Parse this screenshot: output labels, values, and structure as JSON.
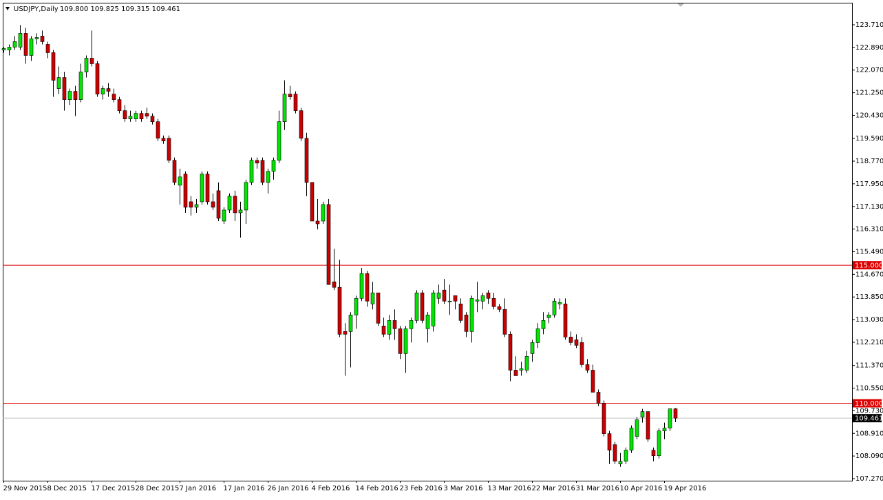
{
  "chart_data": {
    "type": "candlestick",
    "title": "USDJPY,Daily",
    "subtitle": "109.800 109.825 109.315 109.461",
    "candle_fields": [
      "open",
      "high",
      "low",
      "close"
    ],
    "up_color": "#00e600",
    "down_color": "#cc0000",
    "categories": [
      "29 Nov 2015",
      null,
      null,
      null,
      null,
      null,
      null,
      null,
      "8 Dec 2015",
      null,
      null,
      null,
      null,
      null,
      null,
      null,
      "17 Dec 2015",
      null,
      null,
      null,
      null,
      null,
      null,
      null,
      "28 Dec 2015",
      null,
      null,
      null,
      null,
      null,
      null,
      null,
      "7 Jan 2016",
      null,
      null,
      null,
      null,
      null,
      null,
      null,
      "17 Jan 2016",
      null,
      null,
      null,
      null,
      null,
      null,
      null,
      "26 Jan 2016",
      null,
      null,
      null,
      null,
      null,
      null,
      null,
      "4 Feb 2016",
      null,
      null,
      null,
      null,
      null,
      null,
      null,
      "14 Feb 2016",
      null,
      null,
      null,
      null,
      null,
      null,
      null,
      "23 Feb 2016",
      null,
      null,
      null,
      null,
      null,
      null,
      null,
      "3 Mar 2016",
      null,
      null,
      null,
      null,
      null,
      null,
      null,
      "13 Mar 2016",
      null,
      null,
      null,
      null,
      null,
      null,
      null,
      "22 Mar 2016",
      null,
      null,
      null,
      null,
      null,
      null,
      null,
      "31 Mar 2016",
      null,
      null,
      null,
      null,
      null,
      null,
      null,
      "10 Apr 2016",
      null,
      null,
      null,
      null,
      null,
      null,
      null,
      "19 Apr 2016",
      null,
      null
    ],
    "candles": [
      [
        122.8,
        122.9,
        122.7,
        122.85
      ],
      [
        122.8,
        123.0,
        122.6,
        122.9
      ],
      [
        122.9,
        123.3,
        122.8,
        123.1
      ],
      [
        122.9,
        123.7,
        122.8,
        123.4
      ],
      [
        123.4,
        123.6,
        122.3,
        122.6
      ],
      [
        122.6,
        123.3,
        122.4,
        123.2
      ],
      [
        123.2,
        123.4,
        123.0,
        123.25
      ],
      [
        123.3,
        123.5,
        123.0,
        123.1
      ],
      [
        123.0,
        123.1,
        122.5,
        122.7
      ],
      [
        122.7,
        122.8,
        121.1,
        121.7
      ],
      [
        121.4,
        122.2,
        121.2,
        121.8
      ],
      [
        121.8,
        122.0,
        120.6,
        121.0
      ],
      [
        121.0,
        121.4,
        120.8,
        121.3
      ],
      [
        121.3,
        121.5,
        120.4,
        121.0
      ],
      [
        121.0,
        122.3,
        120.9,
        122.0
      ],
      [
        122.0,
        122.6,
        121.8,
        122.5
      ],
      [
        122.5,
        123.5,
        122.2,
        122.3
      ],
      [
        122.3,
        122.4,
        121.1,
        121.2
      ],
      [
        121.2,
        121.5,
        121.0,
        121.4
      ],
      [
        121.4,
        121.6,
        121.1,
        121.3
      ],
      [
        121.2,
        121.4,
        120.9,
        121.0
      ],
      [
        121.0,
        121.1,
        120.5,
        120.6
      ],
      [
        120.6,
        120.8,
        120.2,
        120.3
      ],
      [
        120.3,
        120.6,
        120.2,
        120.4
      ],
      [
        120.3,
        120.6,
        120.2,
        120.5
      ],
      [
        120.5,
        120.6,
        120.2,
        120.3
      ],
      [
        120.5,
        120.7,
        120.3,
        120.4
      ],
      [
        120.4,
        120.5,
        120.1,
        120.2
      ],
      [
        120.2,
        120.3,
        119.5,
        119.6
      ],
      [
        119.6,
        119.7,
        119.4,
        119.5
      ],
      [
        119.6,
        119.7,
        118.7,
        118.8
      ],
      [
        118.8,
        118.9,
        117.9,
        118.0
      ],
      [
        117.9,
        118.5,
        117.2,
        118.2
      ],
      [
        118.3,
        118.4,
        116.9,
        117.1
      ],
      [
        117.3,
        117.5,
        116.8,
        117.1
      ],
      [
        117.1,
        117.4,
        116.9,
        117.2
      ],
      [
        117.3,
        118.4,
        117.2,
        118.3
      ],
      [
        118.3,
        118.4,
        117.2,
        117.3
      ],
      [
        117.3,
        117.6,
        117.0,
        117.1
      ],
      [
        117.7,
        118.0,
        116.6,
        116.7
      ],
      [
        116.6,
        117.1,
        116.5,
        117.0
      ],
      [
        117.0,
        117.6,
        116.9,
        117.5
      ],
      [
        117.5,
        117.7,
        116.6,
        116.9
      ],
      [
        116.9,
        117.3,
        116.0,
        117.0
      ],
      [
        117.0,
        118.1,
        116.5,
        118.0
      ],
      [
        118.0,
        118.9,
        117.9,
        118.8
      ],
      [
        118.8,
        118.9,
        118.5,
        118.7
      ],
      [
        118.8,
        118.9,
        117.9,
        118.0
      ],
      [
        118.0,
        118.5,
        117.6,
        118.4
      ],
      [
        118.4,
        118.9,
        118.1,
        118.8
      ],
      [
        118.8,
        120.6,
        118.7,
        120.2
      ],
      [
        120.2,
        121.7,
        119.9,
        121.2
      ],
      [
        121.2,
        121.5,
        121.0,
        121.1
      ],
      [
        121.2,
        121.3,
        120.5,
        120.6
      ],
      [
        120.6,
        120.7,
        119.5,
        119.6
      ],
      [
        119.6,
        119.8,
        117.5,
        118.0
      ],
      [
        118.0,
        118.0,
        116.6,
        116.6
      ],
      [
        116.6,
        117.4,
        116.3,
        116.5
      ],
      [
        116.6,
        117.3,
        116.5,
        117.2
      ],
      [
        117.2,
        117.4,
        114.3,
        114.3
      ],
      [
        114.4,
        115.6,
        114.1,
        114.2
      ],
      [
        114.2,
        115.2,
        112.4,
        112.5
      ],
      [
        112.6,
        112.9,
        111.0,
        112.5
      ],
      [
        112.6,
        113.3,
        111.3,
        113.2
      ],
      [
        113.2,
        113.9,
        112.7,
        113.8
      ],
      [
        113.8,
        114.9,
        113.7,
        114.7
      ],
      [
        114.7,
        114.8,
        113.5,
        113.7
      ],
      [
        113.6,
        114.4,
        113.4,
        114.0
      ],
      [
        114.0,
        114.0,
        112.8,
        112.9
      ],
      [
        112.8,
        113.1,
        112.4,
        112.5
      ],
      [
        112.5,
        113.2,
        112.3,
        113.0
      ],
      [
        113.0,
        113.4,
        112.3,
        112.7
      ],
      [
        112.7,
        112.8,
        111.6,
        111.8
      ],
      [
        111.8,
        112.8,
        111.1,
        112.7
      ],
      [
        112.7,
        113.1,
        112.2,
        113.0
      ],
      [
        113.0,
        114.1,
        112.9,
        114.0
      ],
      [
        114.0,
        114.1,
        112.9,
        113.0
      ],
      [
        112.7,
        113.3,
        112.2,
        113.2
      ],
      [
        112.8,
        114.1,
        112.6,
        114.0
      ],
      [
        113.8,
        114.3,
        113.6,
        114.0
      ],
      [
        114.1,
        114.5,
        113.6,
        113.7
      ],
      [
        113.7,
        114.3,
        113.2,
        113.7
      ],
      [
        113.9,
        113.9,
        113.4,
        113.7
      ],
      [
        113.6,
        113.8,
        112.9,
        113.0
      ],
      [
        113.2,
        113.3,
        112.4,
        112.6
      ],
      [
        112.6,
        113.9,
        112.2,
        113.8
      ],
      [
        113.7,
        114.4,
        113.3,
        113.75
      ],
      [
        113.7,
        114.0,
        113.4,
        113.9
      ],
      [
        114.0,
        114.1,
        113.6,
        113.8
      ],
      [
        113.8,
        114.0,
        113.4,
        113.5
      ],
      [
        113.5,
        113.6,
        113.3,
        113.4
      ],
      [
        113.4,
        113.8,
        112.4,
        112.5
      ],
      [
        112.5,
        112.6,
        110.8,
        111.2
      ],
      [
        111.2,
        111.7,
        111.0,
        111.0
      ],
      [
        111.2,
        111.5,
        111.0,
        111.25
      ],
      [
        111.2,
        111.9,
        111.1,
        111.7
      ],
      [
        111.8,
        112.3,
        111.5,
        112.2
      ],
      [
        112.2,
        112.9,
        112.0,
        112.7
      ],
      [
        112.7,
        113.3,
        112.5,
        113.0
      ],
      [
        113.1,
        113.3,
        112.9,
        113.2
      ],
      [
        113.2,
        113.8,
        113.1,
        113.7
      ],
      [
        113.6,
        113.8,
        113.4,
        113.65
      ],
      [
        113.6,
        113.8,
        112.3,
        112.4
      ],
      [
        112.4,
        112.6,
        112.1,
        112.2
      ],
      [
        112.3,
        112.5,
        112.0,
        112.1
      ],
      [
        112.2,
        112.4,
        111.3,
        111.4
      ],
      [
        111.4,
        111.6,
        111.1,
        111.2
      ],
      [
        111.2,
        111.4,
        110.4,
        110.4
      ],
      [
        110.4,
        110.5,
        109.9,
        110.0
      ],
      [
        110.0,
        110.1,
        108.8,
        108.9
      ],
      [
        108.9,
        109.0,
        107.8,
        108.3
      ],
      [
        108.5,
        108.6,
        107.8,
        107.9
      ],
      [
        107.8,
        108.2,
        107.7,
        107.9
      ],
      [
        107.9,
        108.4,
        107.8,
        108.3
      ],
      [
        108.3,
        109.2,
        108.2,
        109.1
      ],
      [
        108.8,
        109.5,
        108.7,
        109.4
      ],
      [
        109.5,
        109.8,
        109.3,
        109.7
      ],
      [
        109.7,
        109.7,
        108.6,
        108.7
      ],
      [
        108.3,
        108.4,
        107.9,
        108.1
      ],
      [
        108.1,
        109.1,
        108.0,
        109.0
      ],
      [
        109.0,
        109.3,
        108.7,
        109.1
      ],
      [
        109.1,
        109.8,
        109.0,
        109.8
      ],
      [
        109.8,
        109.825,
        109.315,
        109.461
      ]
    ],
    "ylim": [
      107.195,
      124.508
    ],
    "yticks": [
      {
        "value": 123.71,
        "label": "123.710"
      },
      {
        "value": 122.89,
        "label": "122.890"
      },
      {
        "value": 122.07,
        "label": "122.070"
      },
      {
        "value": 121.25,
        "label": "121.250"
      },
      {
        "value": 120.43,
        "label": "120.430"
      },
      {
        "value": 119.59,
        "label": "119.590"
      },
      {
        "value": 118.77,
        "label": "118.770"
      },
      {
        "value": 117.95,
        "label": "117.950"
      },
      {
        "value": 117.13,
        "label": "117.130"
      },
      {
        "value": 116.31,
        "label": "116.310"
      },
      {
        "value": 115.49,
        "label": "115.490"
      },
      {
        "value": 114.67,
        "label": "114.670"
      },
      {
        "value": 113.85,
        "label": "113.850"
      },
      {
        "value": 113.03,
        "label": "113.030"
      },
      {
        "value": 112.21,
        "label": "112.210"
      },
      {
        "value": 111.37,
        "label": "111.370"
      },
      {
        "value": 110.55,
        "label": "110.550"
      },
      {
        "value": 109.73,
        "label": "109.730"
      },
      {
        "value": 108.91,
        "label": "108.910"
      },
      {
        "value": 108.09,
        "label": "108.090"
      },
      {
        "value": 107.27,
        "label": "107.270"
      }
    ],
    "levels": [
      {
        "value": 115,
        "label": "115.000",
        "color": "#dd0000"
      },
      {
        "value": 110,
        "label": "110.000",
        "color": "#dd0000"
      }
    ],
    "last_price": {
      "value": 109.461,
      "label": "109.461",
      "color": "#c0c0c0"
    }
  }
}
